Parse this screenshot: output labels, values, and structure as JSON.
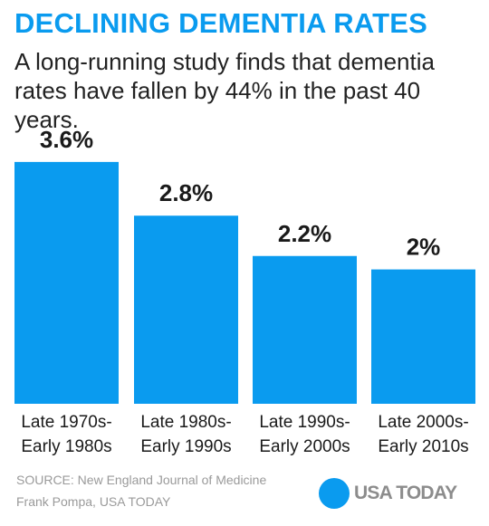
{
  "header": {
    "title": "DECLINING DEMENTIA RATES",
    "subtitle": "A long-running study finds that dementia rates have fallen by 44% in the past 40 years."
  },
  "colors": {
    "title": "#0a9bef",
    "bar": "#0a9bef",
    "label": "#1a1a1a",
    "footer": "#9a9a9a"
  },
  "chart_data": {
    "type": "bar",
    "categories": [
      [
        "Late 1970s-",
        "Early 1980s"
      ],
      [
        "Late 1980s-",
        "Early 1990s"
      ],
      [
        "Late 1990s-",
        "Early 2000s"
      ],
      [
        "Late 2000s-",
        "Early 2010s"
      ]
    ],
    "values": [
      3.6,
      2.8,
      2.2,
      2.0
    ],
    "data_labels": [
      "3.6%",
      "2.8%",
      "2.2%",
      "2%"
    ],
    "grid": false,
    "legend": "none"
  },
  "footer": {
    "source": "SOURCE: New England Journal of Medicine",
    "credit": "Frank Pompa, USA TODAY"
  },
  "logo": {
    "icon": "usa-today-circle-icon",
    "text": "USA TODAY"
  }
}
